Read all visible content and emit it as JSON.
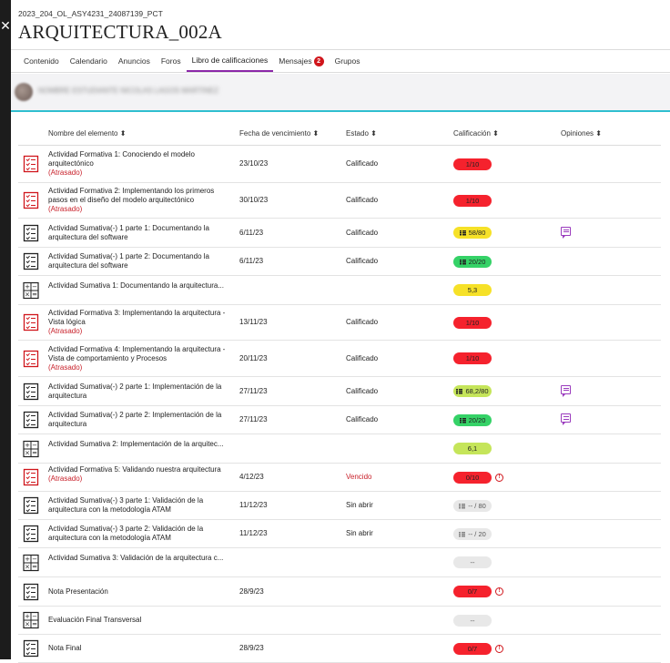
{
  "course": {
    "id": "2023_204_OL_ASY4231_24087139_PCT",
    "title": "ARQUITECTURA_002A"
  },
  "tabs": [
    {
      "label": "Contenido"
    },
    {
      "label": "Calendario"
    },
    {
      "label": "Anuncios"
    },
    {
      "label": "Foros"
    },
    {
      "label": "Libro de calificaciones"
    },
    {
      "label": "Mensajes",
      "badge": "2"
    },
    {
      "label": "Grupos"
    }
  ],
  "user": {
    "name": "NOMBRE ESTUDIANTE NICOLAS LAGOS MARTINEZ"
  },
  "columns": {
    "name": "Nombre del elemento ⬍",
    "due": "Fecha de vencimiento ⬍",
    "status": "Estado ⬍",
    "grade": "Calificación ⬍",
    "feedback": "Opiniones ⬍"
  },
  "late_label": "(Atrasado)",
  "rows": [
    {
      "name": "Actividad Formativa 1: Conociendo el modelo arquitectónico",
      "late": true,
      "due": "23/10/23",
      "status": "Calificado",
      "grade": "1/10",
      "color": "red",
      "icon": "assignment-icon"
    },
    {
      "name": "Actividad Formativa 2: Implementando los primeros pasos en el diseño del modelo arquitectónico",
      "late": true,
      "due": "30/10/23",
      "status": "Calificado",
      "grade": "1/10",
      "color": "red",
      "icon": "assignment-icon"
    },
    {
      "name": "Actividad Sumativa(-) 1 parte 1: Documentando la arquitectura del software",
      "late": false,
      "due": "6/11/23",
      "status": "Calificado",
      "grade": "58/80",
      "color": "yellow",
      "rubric": true,
      "feedback": true,
      "icon": "assignment-icon"
    },
    {
      "name": "Actividad Sumativa(-) 1 parte 2: Documentando la arquitectura del software",
      "late": false,
      "due": "6/11/23",
      "status": "Calificado",
      "grade": "20/20",
      "color": "green",
      "rubric": true,
      "icon": "assignment-icon"
    },
    {
      "name": "Actividad Sumativa 1: Documentando la arquitectura...",
      "late": false,
      "due": "",
      "status": "",
      "grade": "5,3",
      "color": "yellow",
      "icon": "calculation-icon"
    },
    {
      "name": "Actividad Formativa 3: Implementando la arquitectura - Vista lógica",
      "late": true,
      "due": "13/11/23",
      "status": "Calificado",
      "grade": "1/10",
      "color": "red",
      "icon": "assignment-icon"
    },
    {
      "name": "Actividad Formativa 4: Implementando la arquitectura - Vista de comportamiento y Procesos",
      "late": true,
      "due": "20/11/23",
      "status": "Calificado",
      "grade": "1/10",
      "color": "red",
      "icon": "assignment-icon"
    },
    {
      "name": "Actividad Sumativa(-) 2 parte 1: Implementación de la arquitectura",
      "late": false,
      "due": "27/11/23",
      "status": "Calificado",
      "grade": "68,2/80",
      "color": "lime",
      "rubric": true,
      "feedback": true,
      "icon": "assignment-icon"
    },
    {
      "name": "Actividad Sumativa(-) 2 parte 2: Implementación de la arquitectura",
      "late": false,
      "due": "27/11/23",
      "status": "Calificado",
      "grade": "20/20",
      "color": "green",
      "rubric": true,
      "feedback": true,
      "icon": "assignment-icon"
    },
    {
      "name": "Actividad Sumativa 2: Implementación de la arquitec...",
      "late": false,
      "due": "",
      "status": "",
      "grade": "6,1",
      "color": "lime",
      "icon": "calculation-icon"
    },
    {
      "name": "Actividad Formativa 5: Validando nuestra arquitectura",
      "late": true,
      "due": "4/12/23",
      "status": "Vencido",
      "statusRed": true,
      "grade": "0/10",
      "color": "red",
      "alert": true,
      "icon": "assignment-icon"
    },
    {
      "name": "Actividad Sumativa(-) 3 parte 1: Validación de la arquitectura con la metodología ATAM",
      "late": false,
      "due": "11/12/23",
      "status": "Sin abrir",
      "grade": "-- / 80",
      "color": "gray",
      "rubric": true,
      "icon": "assignment-icon"
    },
    {
      "name": "Actividad Sumativa(-) 3 parte 2: Validación de la arquitectura con la metodología ATAM",
      "late": false,
      "due": "11/12/23",
      "status": "Sin abrir",
      "grade": "-- / 20",
      "color": "gray",
      "rubric": true,
      "icon": "assignment-icon"
    },
    {
      "name": "Actividad Sumativa 3: Validación de la arquitectura c...",
      "late": false,
      "due": "",
      "status": "",
      "grade": "--",
      "color": "gray",
      "icon": "calculation-icon"
    },
    {
      "name": "Nota Presentación",
      "late": false,
      "due": "28/9/23",
      "status": "",
      "grade": "0/7",
      "color": "red",
      "alert": true,
      "icon": "assignment-icon"
    },
    {
      "name": "Evaluación Final Transversal",
      "late": false,
      "due": "",
      "status": "",
      "grade": "--",
      "color": "gray",
      "icon": "calculation-icon"
    },
    {
      "name": "Nota Final",
      "late": false,
      "due": "28/9/23",
      "status": "",
      "grade": "0/7",
      "color": "red",
      "alert": true,
      "icon": "assignment-icon"
    }
  ]
}
